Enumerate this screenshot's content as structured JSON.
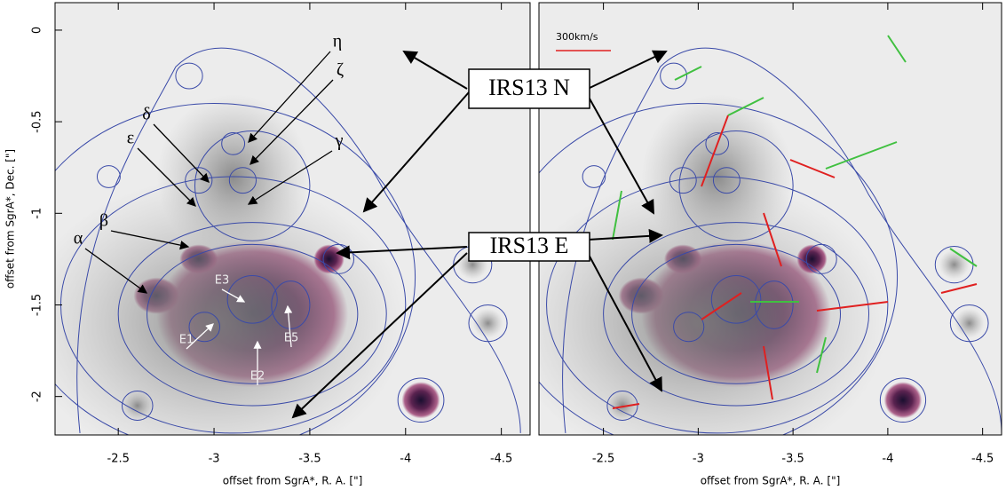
{
  "chart_data": [
    {
      "type": "image",
      "xlim": [
        -2.17,
        -4.65
      ],
      "ylim": [
        -2.21,
        0.15
      ],
      "xticks": [
        -2.5,
        -3,
        -3.5,
        -4,
        -4.5
      ],
      "yticks": [
        0,
        -0.5,
        -1,
        -1.5,
        -2
      ],
      "xlabel": "offset from SgrA*, R. A. [\"]",
      "ylabel": "offset from SgrA*, Dec. [\"]",
      "annotations": [
        "η",
        "ζ",
        "δ",
        "γ",
        "ε",
        "β",
        "α",
        "E3",
        "E1",
        "E5",
        "E2"
      ]
    },
    {
      "type": "image",
      "xlim": [
        -2.16,
        -4.6
      ],
      "ylim": [
        -2.21,
        0.15
      ],
      "xticks": [
        -2.5,
        -3,
        -3.5,
        -4,
        -4.5
      ],
      "xlabel": "offset from SgrA*, R. A. [\"]",
      "annotations": [
        "300km/s"
      ]
    }
  ],
  "callouts": [
    "IRS13 N",
    "IRS13 E"
  ]
}
